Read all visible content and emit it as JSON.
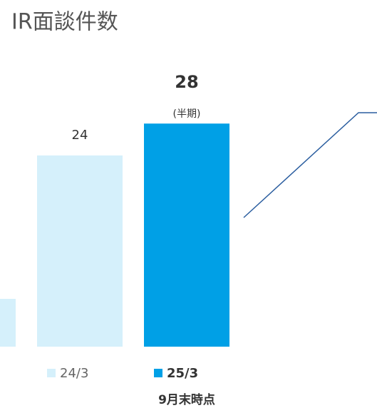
{
  "chart_data": {
    "type": "bar",
    "title": "IR面談件数",
    "categories": [
      null,
      "24/3",
      "25/3"
    ],
    "values": [
      6,
      24,
      28
    ],
    "colors": [
      "#d5f0fb",
      "#d5f0fb",
      "#00a0e6"
    ],
    "annotations": [
      "(半期)",
      "9月末時点"
    ]
  }
}
